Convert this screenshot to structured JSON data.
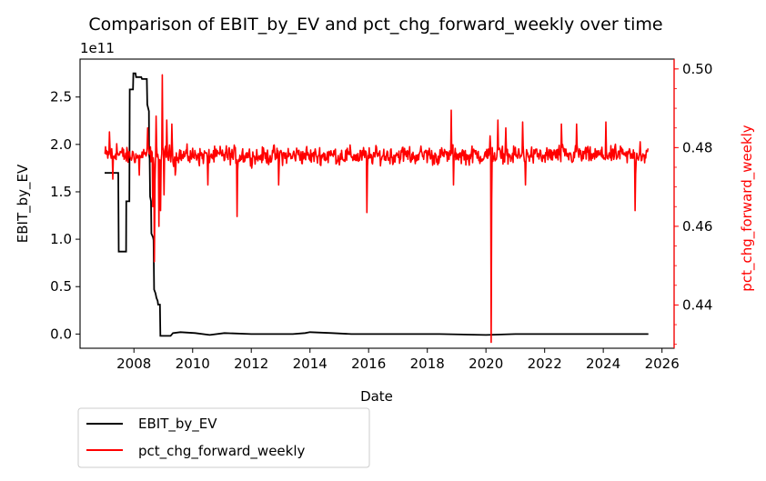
{
  "chart_data": {
    "type": "line",
    "title": "Comparison of EBIT_by_EV and pct_chg_forward_weekly over time",
    "xlabel": "Date",
    "x_ticks": [
      "2008",
      "2010",
      "2012",
      "2014",
      "2016",
      "2018",
      "2020",
      "2022",
      "2024",
      "2026"
    ],
    "xlim": [
      "2006-03-01",
      "2026-06-01"
    ],
    "left_axis": {
      "label": "EBIT_by_EV",
      "offset_text": "1e11",
      "scale": 100000000000.0,
      "ylim": [
        -0.15,
        2.9
      ],
      "ticks": [
        "0.0",
        "0.5",
        "1.0",
        "1.5",
        "2.0",
        "2.5"
      ],
      "color": "#000000"
    },
    "right_axis": {
      "label": "pct_chg_forward_weekly",
      "ylim": [
        0.429,
        0.5025
      ],
      "ticks": [
        "0.44",
        "0.46",
        "0.48",
        "0.50"
      ],
      "color": "#ff0000"
    },
    "series": [
      {
        "name": "EBIT_by_EV",
        "axis": "left",
        "color": "#000000",
        "points": [
          [
            "2007-01-01",
            1.7
          ],
          [
            "2007-06-20",
            1.7
          ],
          [
            "2007-06-25",
            0.87
          ],
          [
            "2007-09-25",
            0.87
          ],
          [
            "2007-09-28",
            1.4
          ],
          [
            "2007-11-05",
            1.4
          ],
          [
            "2007-11-10",
            2.58
          ],
          [
            "2007-12-20",
            2.58
          ],
          [
            "2007-12-25",
            2.75
          ],
          [
            "2008-01-20",
            2.75
          ],
          [
            "2008-01-28",
            2.71
          ],
          [
            "2008-04-01",
            2.71
          ],
          [
            "2008-04-10",
            2.69
          ],
          [
            "2008-06-10",
            2.69
          ],
          [
            "2008-06-15",
            2.42
          ],
          [
            "2008-07-05",
            2.35
          ],
          [
            "2008-07-08",
            1.9
          ],
          [
            "2008-07-15",
            1.85
          ],
          [
            "2008-07-20",
            1.45
          ],
          [
            "2008-08-01",
            1.4
          ],
          [
            "2008-08-05",
            1.06
          ],
          [
            "2008-08-25",
            1.02
          ],
          [
            "2008-09-01",
            0.99
          ],
          [
            "2008-09-08",
            0.47
          ],
          [
            "2008-09-25",
            0.43
          ],
          [
            "2008-10-08",
            0.38
          ],
          [
            "2008-10-22",
            0.35
          ],
          [
            "2008-10-28",
            0.31
          ],
          [
            "2008-11-20",
            0.31
          ],
          [
            "2008-11-25",
            -0.02
          ],
          [
            "2009-04-01",
            -0.02
          ],
          [
            "2009-05-01",
            0.01
          ],
          [
            "2009-08-01",
            0.02
          ],
          [
            "2010-02-01",
            0.01
          ],
          [
            "2010-08-01",
            -0.01
          ],
          [
            "2011-02-01",
            0.01
          ],
          [
            "2012-01-01",
            0.0
          ],
          [
            "2013-06-01",
            0.0
          ],
          [
            "2013-11-01",
            0.01
          ],
          [
            "2014-01-01",
            0.02
          ],
          [
            "2014-10-01",
            0.01
          ],
          [
            "2015-06-01",
            0.0
          ],
          [
            "2017-01-01",
            0.0
          ],
          [
            "2018-06-01",
            0.0
          ],
          [
            "2020-01-01",
            -0.01
          ],
          [
            "2021-01-01",
            0.0
          ],
          [
            "2023-01-01",
            0.0
          ],
          [
            "2025-07-15",
            0.0
          ]
        ]
      },
      {
        "name": "pct_chg_forward_weekly",
        "axis": "right",
        "color": "#ff0000",
        "start": "2007-01-05",
        "end": "2025-07-15",
        "base": 0.478,
        "noise": 0.0032,
        "spikes": [
          [
            "2007-03-01",
            0.484
          ],
          [
            "2007-04-15",
            0.472
          ],
          [
            "2007-06-01",
            0.481
          ],
          [
            "2008-03-10",
            0.473
          ],
          [
            "2008-06-20",
            0.485
          ],
          [
            "2008-08-20",
            0.465
          ],
          [
            "2008-09-10",
            0.451
          ],
          [
            "2008-10-01",
            0.488
          ],
          [
            "2008-11-05",
            0.46
          ],
          [
            "2008-11-26",
            0.464
          ],
          [
            "2008-12-17",
            0.4985
          ],
          [
            "2009-01-10",
            0.468
          ],
          [
            "2009-02-15",
            0.487
          ],
          [
            "2009-04-15",
            0.486
          ],
          [
            "2009-06-01",
            0.473
          ],
          [
            "2010-07-10",
            0.4705
          ],
          [
            "2011-07-10",
            0.4625
          ],
          [
            "2012-12-05",
            0.4705
          ],
          [
            "2015-12-10",
            0.4635
          ],
          [
            "2018-10-25",
            0.4895
          ],
          [
            "2018-11-25",
            0.4705
          ],
          [
            "2020-02-21",
            0.483
          ],
          [
            "2020-03-06",
            0.4305
          ],
          [
            "2020-03-20",
            0.48
          ],
          [
            "2020-06-01",
            0.487
          ],
          [
            "2020-09-01",
            0.485
          ],
          [
            "2021-04-01",
            0.4865
          ],
          [
            "2021-05-10",
            0.4705
          ],
          [
            "2022-08-01",
            0.486
          ],
          [
            "2023-02-01",
            0.486
          ],
          [
            "2024-02-01",
            0.4865
          ],
          [
            "2025-02-01",
            0.464
          ],
          [
            "2025-04-01",
            0.4815
          ]
        ]
      }
    ],
    "legend": {
      "placement": "bottom-left",
      "entries": [
        {
          "label": "EBIT_by_EV",
          "color": "#000000"
        },
        {
          "label": "pct_chg_forward_weekly",
          "color": "#ff0000"
        }
      ]
    },
    "grid": false
  }
}
